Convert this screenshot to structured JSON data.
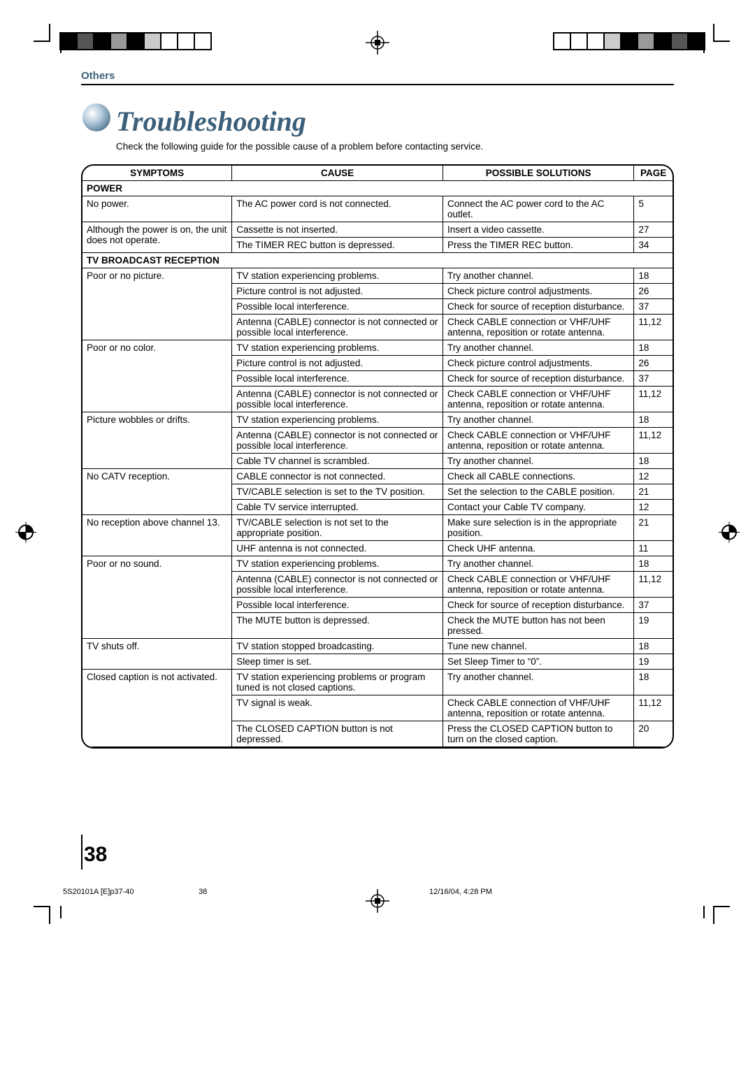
{
  "header": {
    "section": "Others"
  },
  "title": "Troubleshooting",
  "subtitle": "Check the following guide for the possible cause of a problem before contacting service.",
  "columns": {
    "symptoms": "SYMPTOMS",
    "cause": "CAUSE",
    "solutions": "POSSIBLE SOLUTIONS",
    "page": "PAGE"
  },
  "sections": [
    {
      "name": "POWER",
      "groups": [
        {
          "symptom": "No power.",
          "rows": [
            {
              "cause": "The AC power cord is not connected.",
              "solution": "Connect the AC power cord to the AC outlet.",
              "page": "5"
            }
          ]
        },
        {
          "symptom": "Although the power is on, the unit does not operate.",
          "rows": [
            {
              "cause": "Cassette is not inserted.",
              "solution": "Insert a video cassette.",
              "page": "27"
            },
            {
              "cause": "The TIMER REC button is depressed.",
              "solution": "Press the TIMER REC button.",
              "page": "34"
            }
          ]
        }
      ]
    },
    {
      "name": "TV BROADCAST RECEPTION",
      "groups": [
        {
          "symptom": "Poor or no picture.",
          "rows": [
            {
              "cause": "TV station experiencing problems.",
              "solution": "Try another channel.",
              "page": "18"
            },
            {
              "cause": "Picture control is not adjusted.",
              "solution": "Check picture control adjustments.",
              "page": "26"
            },
            {
              "cause": "Possible local interference.",
              "solution": "Check for source of reception disturbance.",
              "page": "37"
            },
            {
              "cause": "Antenna (CABLE) connector is not connected or possible local interference.",
              "solution": "Check CABLE connection or VHF/UHF antenna, reposition or rotate antenna.",
              "page": "11,12"
            }
          ]
        },
        {
          "symptom": "Poor or no color.",
          "rows": [
            {
              "cause": "TV station experiencing problems.",
              "solution": "Try another channel.",
              "page": "18"
            },
            {
              "cause": "Picture control is not adjusted.",
              "solution": "Check picture control adjustments.",
              "page": "26"
            },
            {
              "cause": "Possible local interference.",
              "solution": "Check for source of reception disturbance.",
              "page": "37"
            },
            {
              "cause": "Antenna (CABLE) connector is not connected or possible local interference.",
              "solution": "Check CABLE connection or VHF/UHF antenna, reposition or rotate antenna.",
              "page": "11,12"
            }
          ]
        },
        {
          "symptom": "Picture wobbles or drifts.",
          "rows": [
            {
              "cause": "TV station experiencing problems.",
              "solution": "Try another channel.",
              "page": "18"
            },
            {
              "cause": "Antenna (CABLE) connector is not connected or possible local interference.",
              "solution": "Check CABLE connection or VHF/UHF antenna, reposition or rotate antenna.",
              "page": "11,12"
            },
            {
              "cause": "Cable TV channel is scrambled.",
              "solution": "Try another channel.",
              "page": "18"
            }
          ]
        },
        {
          "symptom": "No CATV reception.",
          "rows": [
            {
              "cause": "CABLE connector is not connected.",
              "solution": "Check all CABLE connections.",
              "page": "12"
            },
            {
              "cause": "TV/CABLE selection is set to the TV position.",
              "solution": "Set the selection to the CABLE position.",
              "page": "21"
            },
            {
              "cause": "Cable TV service interrupted.",
              "solution": "Contact your Cable TV company.",
              "page": "12"
            }
          ]
        },
        {
          "symptom": "No reception above channel 13.",
          "rows": [
            {
              "cause": "TV/CABLE selection is not set to the appropriate position.",
              "solution": "Make sure selection is in the appropriate position.",
              "page": "21"
            },
            {
              "cause": "UHF antenna is not connected.",
              "solution": "Check UHF antenna.",
              "page": "11"
            }
          ]
        },
        {
          "symptom": "Poor or no sound.",
          "rows": [
            {
              "cause": "TV station experiencing problems.",
              "solution": "Try another channel.",
              "page": "18"
            },
            {
              "cause": "Antenna (CABLE) connector is not connected or possible local interference.",
              "solution": "Check CABLE connection or VHF/UHF antenna, reposition or rotate antenna.",
              "page": "11,12"
            },
            {
              "cause": "Possible local interference.",
              "solution": "Check for source of reception disturbance.",
              "page": "37"
            },
            {
              "cause": "The MUTE button is depressed.",
              "solution": "Check the MUTE button has not been pressed.",
              "page": "19"
            }
          ]
        },
        {
          "symptom": "TV shuts off.",
          "rows": [
            {
              "cause": "TV station stopped broadcasting.",
              "solution": "Tune new channel.",
              "page": "18"
            },
            {
              "cause": "Sleep timer is set.",
              "solution": "Set Sleep Timer to “0”.",
              "page": "19"
            }
          ]
        },
        {
          "symptom": "Closed caption is not activated.",
          "rows": [
            {
              "cause": "TV station experiencing problems or program tuned is not closed captions.",
              "solution": "Try another channel.",
              "page": "18"
            },
            {
              "cause": "TV signal is weak.",
              "solution": "Check CABLE connection of VHF/UHF antenna, reposition or rotate antenna.",
              "page": "11,12"
            },
            {
              "cause": "The CLOSED CAPTION button is not depressed.",
              "solution": "Press the CLOSED CAPTION button to turn on the closed caption.",
              "page": "20"
            }
          ]
        }
      ]
    }
  ],
  "pageNumber": "38",
  "footer": {
    "left": "5S20101A [E]p37-40",
    "mid": "38",
    "right": "12/16/04, 4:28 PM"
  },
  "colors": {
    "accent": "#3b5f7a",
    "text": "#000000",
    "background": "#ffffff"
  }
}
